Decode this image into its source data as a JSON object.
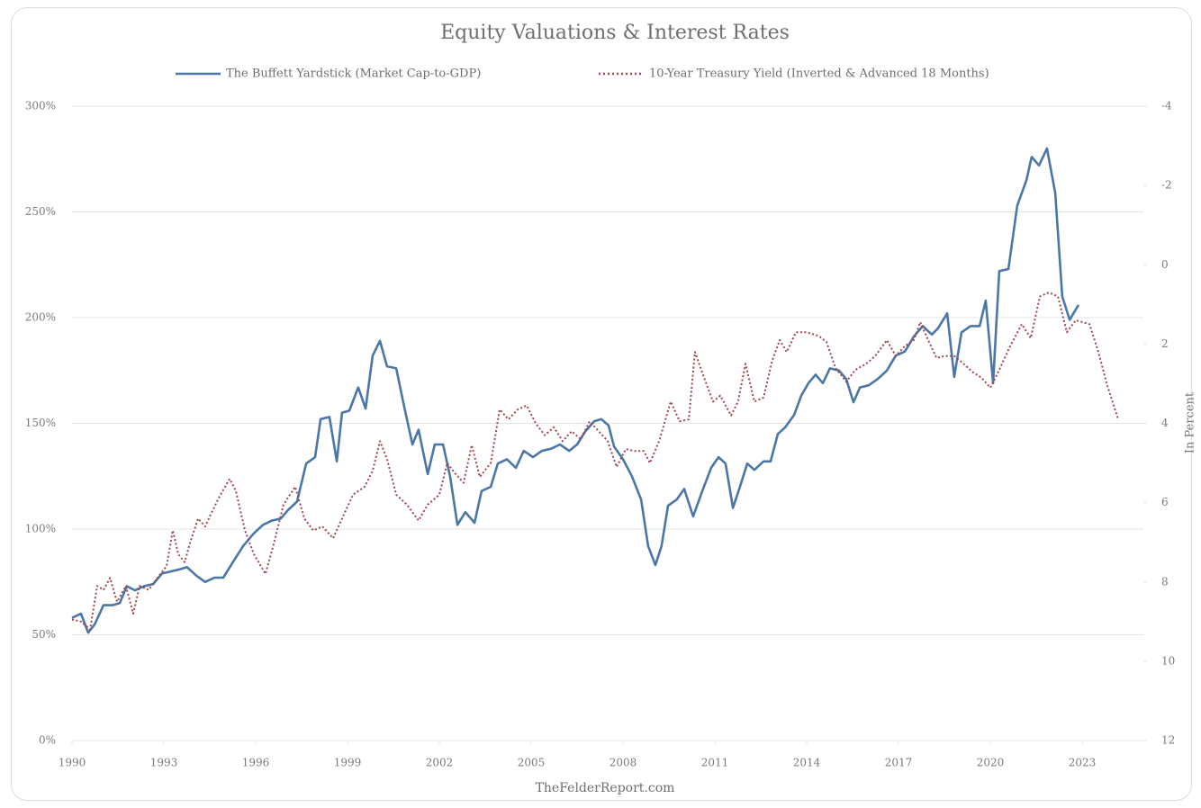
{
  "chart_data": {
    "type": "line",
    "title": "Equity Valuations & Interest Rates",
    "source": "TheFelderReport.com",
    "y2label": "In Percent",
    "xlim": [
      1990,
      2025
    ],
    "xticks": [
      1990,
      1993,
      1996,
      1999,
      2002,
      2005,
      2008,
      2011,
      2014,
      2017,
      2020,
      2023
    ],
    "ylim": [
      0,
      300
    ],
    "yticks": [
      {
        "value": 0,
        "label": "0%"
      },
      {
        "value": 50,
        "label": "50%"
      },
      {
        "value": 100,
        "label": "100%"
      },
      {
        "value": 150,
        "label": "150%"
      },
      {
        "value": 200,
        "label": "200%"
      },
      {
        "value": 250,
        "label": "250%"
      },
      {
        "value": 300,
        "label": "300%"
      }
    ],
    "y2lim": [
      12,
      -4
    ],
    "y2ticks": [
      -4,
      -2,
      0,
      2,
      4,
      6,
      8,
      10,
      12
    ],
    "grid": true,
    "legend": "top",
    "series": [
      {
        "name": "The Buffett Yardstick (Market Cap-to-GDP)",
        "color": "#4a76a8",
        "style": "solid",
        "x": [
          1990.0,
          1990.29,
          1990.53,
          1990.74,
          1991.03,
          1991.32,
          1991.56,
          1991.79,
          1992.06,
          1992.35,
          1992.65,
          1992.94,
          1993.24,
          1993.53,
          1993.76,
          1994.06,
          1994.35,
          1994.65,
          1994.94,
          1995.24,
          1995.59,
          1995.94,
          1996.24,
          1996.53,
          1996.82,
          1997.06,
          1997.35,
          1997.65,
          1997.94,
          1998.12,
          1998.41,
          1998.65,
          1998.82,
          1999.06,
          1999.35,
          1999.59,
          1999.82,
          2000.06,
          2000.29,
          2000.59,
          2000.82,
          2001.12,
          2001.32,
          2001.62,
          2001.85,
          2002.12,
          2002.35,
          2002.59,
          2002.85,
          2003.15,
          2003.38,
          2003.68,
          2003.91,
          2004.21,
          2004.5,
          2004.76,
          2005.06,
          2005.35,
          2005.65,
          2005.94,
          2006.24,
          2006.5,
          2006.76,
          2007.06,
          2007.29,
          2007.53,
          2007.71,
          2008.0,
          2008.29,
          2008.59,
          2008.82,
          2009.06,
          2009.26,
          2009.47,
          2009.76,
          2010.0,
          2010.29,
          2010.59,
          2010.88,
          2011.12,
          2011.35,
          2011.59,
          2011.82,
          2012.06,
          2012.29,
          2012.59,
          2012.82,
          2013.06,
          2013.29,
          2013.59,
          2013.82,
          2014.06,
          2014.29,
          2014.53,
          2014.76,
          2015.06,
          2015.29,
          2015.53,
          2015.74,
          2016.03,
          2016.32,
          2016.62,
          2016.91,
          2017.21,
          2017.5,
          2017.79,
          2018.09,
          2018.29,
          2018.59,
          2018.82,
          2019.06,
          2019.35,
          2019.65,
          2019.85,
          2020.09,
          2020.29,
          2020.59,
          2020.88,
          2021.18,
          2021.35,
          2021.59,
          2021.85,
          2022.12,
          2022.35,
          2022.59,
          2022.88
        ],
        "values": [
          58,
          60,
          51,
          55,
          64,
          64,
          65,
          73,
          71,
          73,
          74,
          79,
          80,
          81,
          82,
          78,
          75,
          77,
          77,
          84,
          92,
          98,
          102,
          104,
          105,
          109,
          113,
          131,
          134,
          152,
          153,
          132,
          155,
          156,
          167,
          157,
          182,
          189,
          177,
          176,
          160,
          140,
          147,
          126,
          140,
          140,
          125,
          102,
          108,
          103,
          118,
          120,
          131,
          133,
          129,
          137,
          134,
          137,
          138,
          140,
          137,
          140,
          146,
          151,
          152,
          149,
          139,
          133,
          125,
          114,
          92,
          83,
          92,
          111,
          114,
          119,
          106,
          118,
          129,
          134,
          131,
          110,
          120,
          131,
          128,
          132,
          132,
          145,
          148,
          154,
          163,
          169,
          173,
          169,
          176,
          175,
          171,
          160,
          167,
          168,
          171,
          175,
          182,
          184,
          191,
          196,
          192,
          195,
          202,
          172,
          193,
          196,
          196,
          208,
          169,
          222,
          223,
          253,
          265,
          276,
          272,
          280,
          259,
          210,
          199,
          206
        ]
      },
      {
        "name": "10-Year Treasury Yield (Inverted & Advanced 18 Months)",
        "color": "#a3454e",
        "style": "dotted",
        "axis": "y2",
        "x": [
          1990.0,
          1990.29,
          1990.59,
          1990.82,
          1991.03,
          1991.24,
          1991.47,
          1991.76,
          1992.0,
          1992.21,
          1992.5,
          1992.79,
          1993.09,
          1993.29,
          1993.47,
          1993.68,
          1993.88,
          1994.12,
          1994.35,
          1994.59,
          1994.85,
          1995.15,
          1995.35,
          1995.65,
          1995.94,
          1996.32,
          1996.62,
          1996.91,
          1997.29,
          1997.59,
          1997.88,
          1998.18,
          1998.53,
          1998.82,
          1999.18,
          1999.56,
          1999.82,
          2000.06,
          2000.29,
          2000.59,
          2000.94,
          2001.32,
          2001.62,
          2002.0,
          2002.26,
          2002.5,
          2002.79,
          2003.06,
          2003.32,
          2003.68,
          2003.97,
          2004.26,
          2004.56,
          2004.85,
          2005.15,
          2005.44,
          2005.74,
          2006.03,
          2006.32,
          2006.62,
          2006.91,
          2007.21,
          2007.5,
          2007.79,
          2008.09,
          2008.38,
          2008.68,
          2008.88,
          2009.18,
          2009.56,
          2009.85,
          2010.15,
          2010.35,
          2010.65,
          2010.94,
          2011.18,
          2011.53,
          2011.76,
          2012.0,
          2012.29,
          2012.59,
          2012.88,
          2013.12,
          2013.35,
          2013.65,
          2014.0,
          2014.41,
          2014.65,
          2014.94,
          2015.29,
          2015.59,
          2015.94,
          2016.24,
          2016.62,
          2016.91,
          2017.21,
          2017.5,
          2017.71,
          2017.94,
          2018.24,
          2018.53,
          2018.82,
          2019.06,
          2019.41,
          2019.71,
          2020.0,
          2020.29,
          2020.65,
          2021.03,
          2021.32,
          2021.62,
          2021.91,
          2022.21,
          2022.5,
          2022.79,
          2023.24,
          2023.53,
          2023.82,
          2024.18
        ],
        "values": [
          8.95,
          9.0,
          9.2,
          8.1,
          8.2,
          7.9,
          8.5,
          8.1,
          8.8,
          8.1,
          8.2,
          7.9,
          7.6,
          6.7,
          7.3,
          7.5,
          6.95,
          6.4,
          6.6,
          6.2,
          5.8,
          5.4,
          5.7,
          6.7,
          7.3,
          7.8,
          6.95,
          6.05,
          5.6,
          6.4,
          6.7,
          6.6,
          6.9,
          6.4,
          5.8,
          5.6,
          5.2,
          4.45,
          4.9,
          5.8,
          6.05,
          6.45,
          6.05,
          5.8,
          5.0,
          5.25,
          5.5,
          4.55,
          5.35,
          5.0,
          3.65,
          3.9,
          3.65,
          3.55,
          4.0,
          4.3,
          4.1,
          4.45,
          4.2,
          4.4,
          3.95,
          4.2,
          4.45,
          5.1,
          4.65,
          4.7,
          4.7,
          5.0,
          4.45,
          3.45,
          3.95,
          3.9,
          2.2,
          2.85,
          3.45,
          3.3,
          3.8,
          3.45,
          2.5,
          3.45,
          3.35,
          2.4,
          1.9,
          2.2,
          1.7,
          1.7,
          1.8,
          1.95,
          2.6,
          2.95,
          2.65,
          2.5,
          2.3,
          1.9,
          2.3,
          2.05,
          1.9,
          1.45,
          1.85,
          2.35,
          2.3,
          2.3,
          2.45,
          2.7,
          2.85,
          3.1,
          2.65,
          2.05,
          1.5,
          1.85,
          0.8,
          0.7,
          0.8,
          1.7,
          1.4,
          1.5,
          2.2,
          3.05,
          3.9
        ]
      }
    ]
  }
}
